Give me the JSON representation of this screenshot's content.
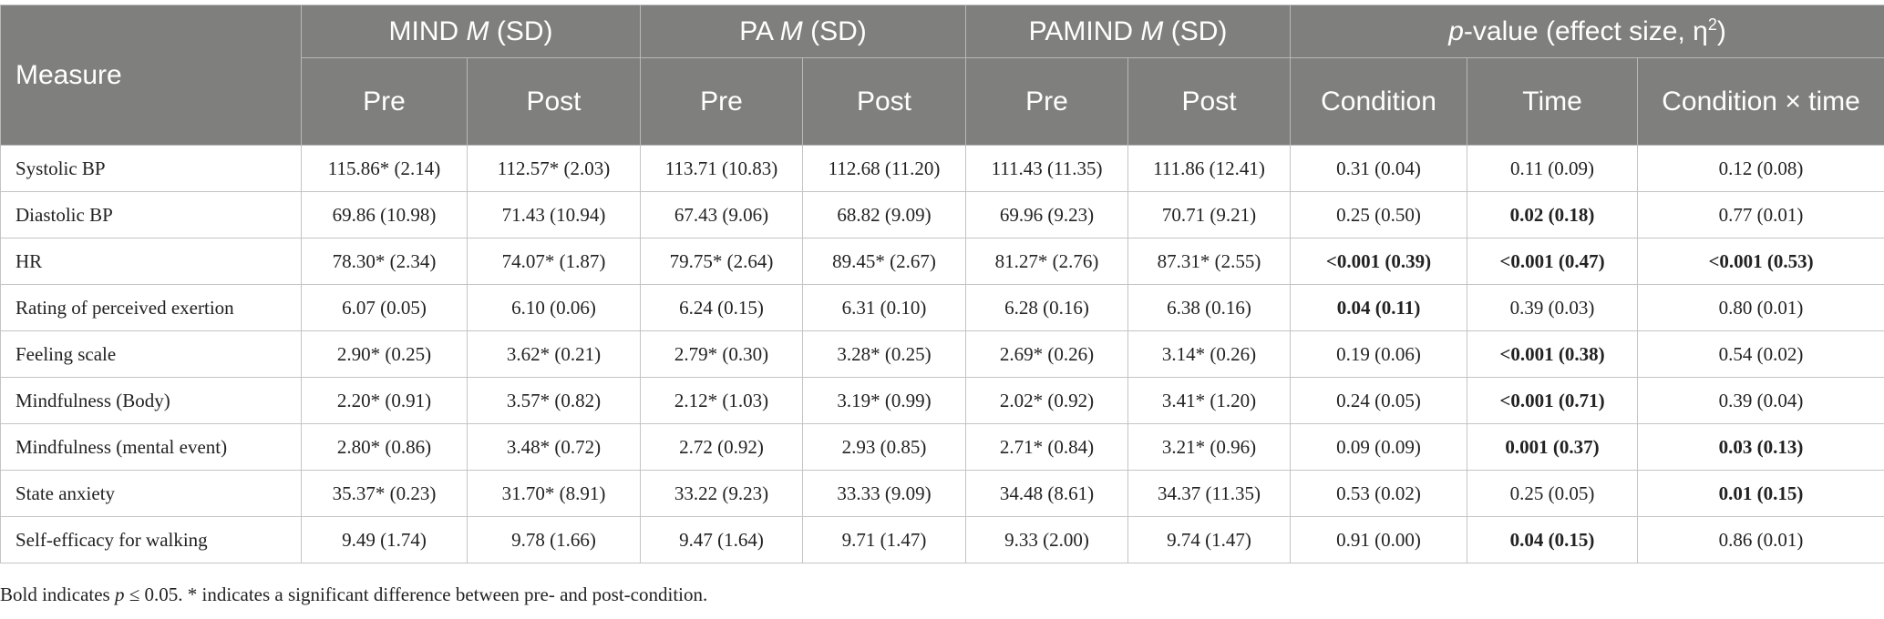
{
  "table": {
    "header": {
      "measure": "Measure",
      "groups": [
        {
          "name": "MIND",
          "stat": "M",
          "unit": "(SD)",
          "columns": [
            "Pre",
            "Post"
          ]
        },
        {
          "name": "PA",
          "stat": "M",
          "unit": "(SD)",
          "columns": [
            "Pre",
            "Post"
          ]
        },
        {
          "name": "PAMIND",
          "stat": "M",
          "unit": "(SD)",
          "columns": [
            "Pre",
            "Post"
          ]
        },
        {
          "p": "p",
          "rest": "-value (effect size, η",
          "sup": "2",
          "close": ")",
          "columns": [
            "Condition",
            "Time",
            "Condition × time"
          ]
        }
      ]
    },
    "rows": [
      {
        "measure": "Systolic BP",
        "cells": [
          "115.86* (2.14)",
          "112.57* (2.03)",
          "113.71 (10.83)",
          "112.68 (11.20)",
          "111.43 (11.35)",
          "111.86 (12.41)",
          "0.31 (0.04)",
          "0.11 (0.09)",
          "0.12 (0.08)"
        ],
        "bold": []
      },
      {
        "measure": "Diastolic BP",
        "cells": [
          "69.86 (10.98)",
          "71.43 (10.94)",
          "67.43 (9.06)",
          "68.82 (9.09)",
          "69.96 (9.23)",
          "70.71 (9.21)",
          "0.25 (0.50)",
          "0.02 (0.18)",
          "0.77 (0.01)"
        ],
        "bold": [
          7
        ]
      },
      {
        "measure": "HR",
        "cells": [
          "78.30* (2.34)",
          "74.07* (1.87)",
          "79.75* (2.64)",
          "89.45* (2.67)",
          "81.27* (2.76)",
          "87.31* (2.55)",
          "<0.001 (0.39)",
          "<0.001 (0.47)",
          "<0.001 (0.53)"
        ],
        "bold": [
          6,
          7,
          8
        ]
      },
      {
        "measure": "Rating of perceived exertion",
        "cells": [
          "6.07 (0.05)",
          "6.10 (0.06)",
          "6.24 (0.15)",
          "6.31 (0.10)",
          "6.28 (0.16)",
          "6.38 (0.16)",
          "0.04 (0.11)",
          "0.39 (0.03)",
          "0.80 (0.01)"
        ],
        "bold": [
          6
        ]
      },
      {
        "measure": "Feeling scale",
        "cells": [
          "2.90* (0.25)",
          "3.62* (0.21)",
          "2.79* (0.30)",
          "3.28* (0.25)",
          "2.69* (0.26)",
          "3.14* (0.26)",
          "0.19 (0.06)",
          "<0.001 (0.38)",
          "0.54 (0.02)"
        ],
        "bold": [
          7
        ]
      },
      {
        "measure": "Mindfulness (Body)",
        "cells": [
          "2.20* (0.91)",
          "3.57* (0.82)",
          "2.12* (1.03)",
          "3.19* (0.99)",
          "2.02* (0.92)",
          "3.41* (1.20)",
          "0.24 (0.05)",
          "<0.001 (0.71)",
          "0.39 (0.04)"
        ],
        "bold": [
          7
        ]
      },
      {
        "measure": "Mindfulness (mental event)",
        "cells": [
          "2.80* (0.86)",
          "3.48* (0.72)",
          "2.72 (0.92)",
          "2.93 (0.85)",
          "2.71* (0.84)",
          "3.21* (0.96)",
          "0.09 (0.09)",
          "0.001 (0.37)",
          "0.03 (0.13)"
        ],
        "bold": [
          7,
          8
        ]
      },
      {
        "measure": "State anxiety",
        "cells": [
          "35.37* (0.23)",
          "31.70* (8.91)",
          "33.22 (9.23)",
          "33.33 (9.09)",
          "34.48 (8.61)",
          "34.37 (11.35)",
          "0.53 (0.02)",
          "0.25 (0.05)",
          "0.01 (0.15)"
        ],
        "bold": [
          8
        ]
      },
      {
        "measure": "Self-efficacy for walking",
        "cells": [
          "9.49 (1.74)",
          "9.78 (1.66)",
          "9.47 (1.64)",
          "9.71 (1.47)",
          "9.33 (2.00)",
          "9.74 (1.47)",
          "0.91 (0.00)",
          "0.04 (0.15)",
          "0.86 (0.01)"
        ],
        "bold": [
          7
        ]
      }
    ]
  },
  "footnote": {
    "before": "Bold indicates",
    "p": "p",
    "after": "≤ 0.05. * indicates a significant difference between pre- and post-condition."
  }
}
